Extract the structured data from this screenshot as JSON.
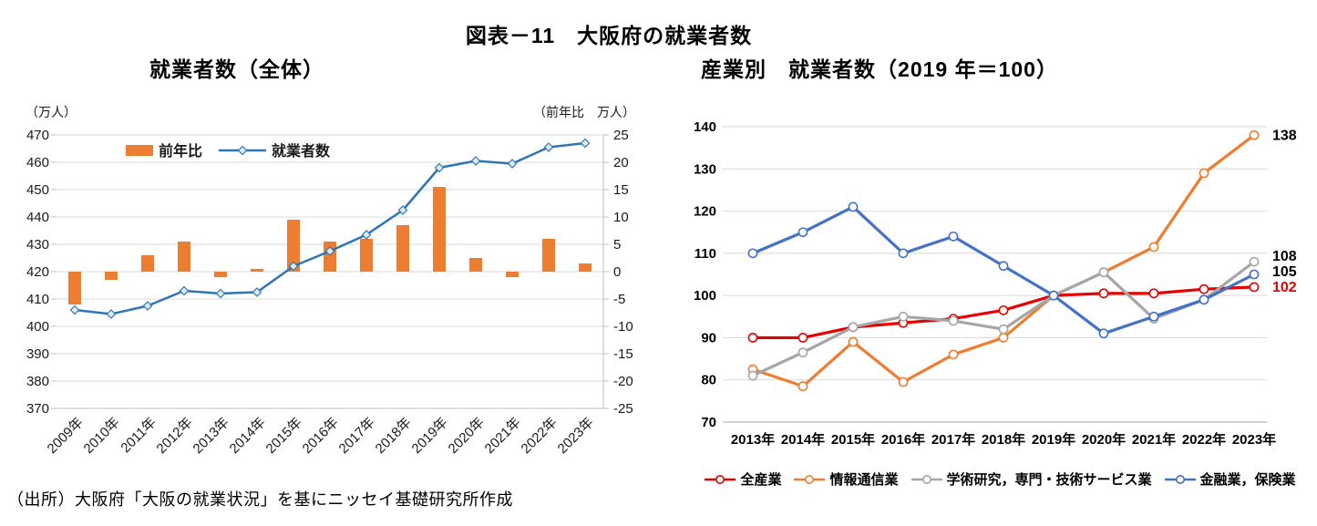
{
  "page": {
    "title": "図表－11　大阪府の就業者数",
    "source_note": "（出所）大阪府「大阪の就業状況」を基にニッセイ基礎研究所作成"
  },
  "chart_data": [
    {
      "id": "employment_total",
      "type": "combo",
      "title": "就業者数（全体）",
      "categories": [
        "2009年",
        "2010年",
        "2011年",
        "2012年",
        "2013年",
        "2014年",
        "2015年",
        "2016年",
        "2017年",
        "2018年",
        "2019年",
        "2020年",
        "2021年",
        "2022年",
        "2023年"
      ],
      "left_axis": {
        "unit_label": "（万人）",
        "min": 370,
        "max": 470,
        "step": 10
      },
      "right_axis": {
        "unit_label": "（前年比　万人）",
        "min": -25,
        "max": 25,
        "step": 5
      },
      "grid": "horizontal",
      "legend_position": "top-inside",
      "series": [
        {
          "name": "前年比",
          "type": "bar",
          "axis": "right",
          "color": "#ED7D31",
          "values": [
            -6,
            -1.5,
            3,
            5.5,
            -1,
            0.5,
            9.5,
            5.5,
            6,
            8.5,
            15.5,
            2.5,
            -1,
            6,
            1.5
          ]
        },
        {
          "name": "就業者数",
          "type": "line",
          "axis": "left",
          "color": "#2E75B6",
          "marker": "diamond",
          "marker_fill": "#DDEBF7",
          "values": [
            406,
            404.5,
            407.5,
            413,
            412,
            412.5,
            422,
            427.5,
            433.5,
            442.5,
            458,
            460.5,
            459.5,
            465.5,
            467
          ]
        }
      ]
    },
    {
      "id": "industry_index",
      "type": "line",
      "title": "産業別　就業者数（2019 年＝100）",
      "categories": [
        "2013年",
        "2014年",
        "2015年",
        "2016年",
        "2017年",
        "2018年",
        "2019年",
        "2020年",
        "2021年",
        "2022年",
        "2023年"
      ],
      "y_axis": {
        "min": 70,
        "max": 140,
        "step": 10
      },
      "grid": "horizontal",
      "legend_position": "bottom",
      "series": [
        {
          "name": "全産業",
          "color": "#E60000",
          "marker": "circle",
          "values": [
            90,
            90,
            92.5,
            93.5,
            94.5,
            96.5,
            100,
            100.5,
            100.5,
            101.5,
            102
          ],
          "end_label": "102",
          "end_label_color": "#E60000"
        },
        {
          "name": "情報通信業",
          "color": "#ED7D31",
          "marker": "circle",
          "values": [
            82.5,
            78.5,
            89,
            79.5,
            86,
            90,
            100,
            105.5,
            111.5,
            129,
            138
          ],
          "end_label": "138",
          "end_label_color": "#000000"
        },
        {
          "name": "学術研究，専門・技術サービス業",
          "color": "#A6A6A6",
          "marker": "circle",
          "values": [
            81,
            86.5,
            92.5,
            95,
            94,
            92,
            100,
            105.5,
            94.5,
            99,
            108
          ],
          "end_label": "108",
          "end_label_color": "#000000"
        },
        {
          "name": "金融業，保険業",
          "color": "#4472C4",
          "marker": "circle",
          "values": [
            110,
            115,
            121,
            110,
            114,
            107,
            100,
            91,
            95,
            99,
            105
          ],
          "end_label": "105",
          "end_label_color": "#000000"
        }
      ]
    }
  ]
}
